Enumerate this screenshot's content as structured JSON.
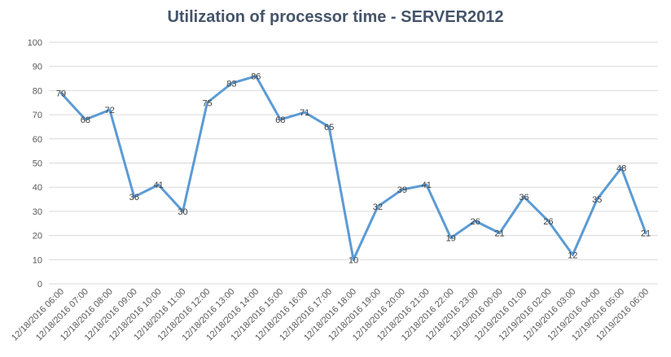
{
  "chart_data": {
    "type": "line",
    "title": "Utilization of processor time - SERVER2012",
    "xlabel": "",
    "ylabel": "",
    "ylim": [
      0,
      100
    ],
    "yticks": [
      0,
      10,
      20,
      30,
      40,
      50,
      60,
      70,
      80,
      90,
      100
    ],
    "grid": true,
    "legend": "none",
    "categories": [
      "12/18/2016 06:00",
      "12/18/2016 07:00",
      "12/18/2016 08:00",
      "12/18/2016 09:00",
      "12/18/2016 10:00",
      "12/18/2016 11:00",
      "12/18/2016 12:00",
      "12/18/2016 13:00",
      "12/18/2016 14:00",
      "12/18/2016 15:00",
      "12/18/2016 16:00",
      "12/18/2016 17:00",
      "12/18/2016 18:00",
      "12/18/2016 19:00",
      "12/18/2016 20:00",
      "12/18/2016 21:00",
      "12/18/2016 22:00",
      "12/18/2016 23:00",
      "12/19/2016 00:00",
      "12/19/2016 01:00",
      "12/19/2016 02:00",
      "12/19/2016 03:00",
      "12/19/2016 04:00",
      "12/19/2016 05:00",
      "12/19/2016 06:00"
    ],
    "series": [
      {
        "values": [
          79,
          68,
          72,
          36,
          41,
          30,
          75,
          83,
          86,
          68,
          71,
          65,
          10,
          32,
          39,
          41,
          19,
          26,
          21,
          36,
          26,
          12,
          35,
          48,
          21
        ],
        "color": "#5b9bd5"
      }
    ]
  }
}
